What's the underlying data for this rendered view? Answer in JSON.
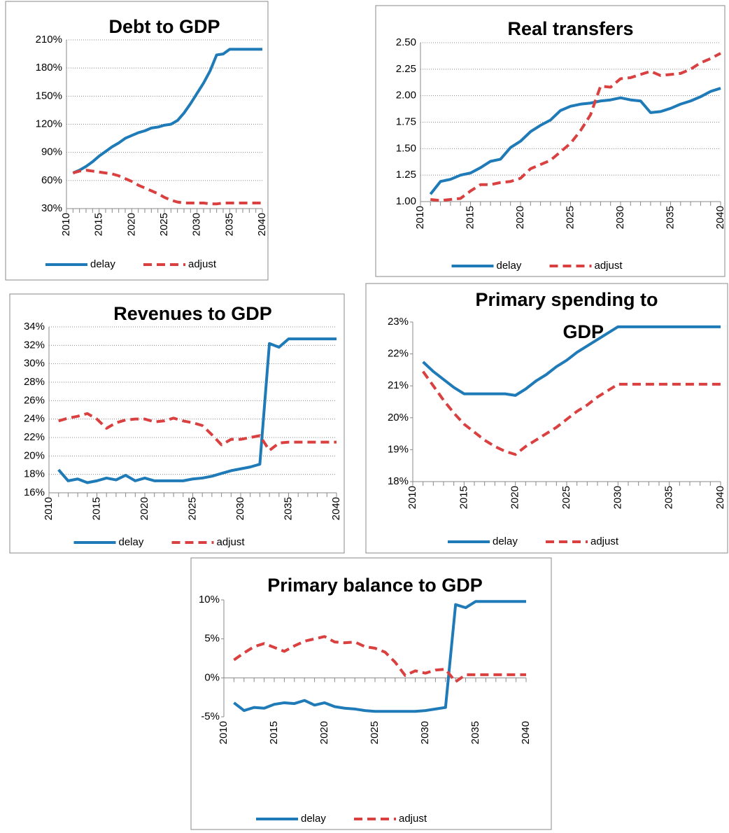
{
  "chart_data": [
    {
      "type": "line",
      "title": "Debt to GDP",
      "x": [
        2011,
        2012,
        2013,
        2014,
        2015,
        2016,
        2017,
        2018,
        2019,
        2020,
        2021,
        2022,
        2023,
        2024,
        2025,
        2026,
        2027,
        2028,
        2029,
        2030,
        2031,
        2032,
        2033,
        2034,
        2035,
        2036,
        2037,
        2038,
        2039,
        2040
      ],
      "xlim": [
        2010,
        2040
      ],
      "xticks": [
        2010,
        2015,
        2020,
        2025,
        2030,
        2035,
        2040
      ],
      "ylim": [
        30,
        210
      ],
      "yticks": [
        {
          "value": 30,
          "label": "30%"
        },
        {
          "value": 60,
          "label": "60%"
        },
        {
          "value": 90,
          "label": "90%"
        },
        {
          "value": 120,
          "label": "120%"
        },
        {
          "value": 150,
          "label": "150%"
        },
        {
          "value": 180,
          "label": "180%"
        },
        {
          "value": 210,
          "label": "210%"
        }
      ],
      "grid": true,
      "series": [
        {
          "name": "delay",
          "color": "#1f7ab8",
          "dash": false,
          "values": [
            68,
            71,
            75,
            80,
            86,
            91,
            96,
            100,
            105,
            108,
            111,
            113,
            116,
            117,
            119,
            120,
            124,
            132,
            142,
            153,
            164,
            177,
            194,
            195,
            200,
            200,
            200,
            200,
            200,
            200
          ]
        },
        {
          "name": "adjust",
          "color": "#d9403f",
          "dash": true,
          "values": [
            68,
            70,
            71,
            70,
            69,
            68,
            67,
            65,
            62,
            59,
            55,
            52,
            49,
            46,
            42,
            39,
            37,
            36,
            36,
            36,
            36,
            35,
            35,
            36,
            36,
            36,
            36,
            36,
            36,
            36
          ]
        }
      ]
    },
    {
      "type": "line",
      "title": "Real transfers",
      "x": [
        2011,
        2012,
        2013,
        2014,
        2015,
        2016,
        2017,
        2018,
        2019,
        2020,
        2021,
        2022,
        2023,
        2024,
        2025,
        2026,
        2027,
        2028,
        2029,
        2030,
        2031,
        2032,
        2033,
        2034,
        2035,
        2036,
        2037,
        2038,
        2039,
        2040
      ],
      "xlim": [
        2010,
        2040
      ],
      "xticks": [
        2010,
        2015,
        2020,
        2025,
        2030,
        2035,
        2040
      ],
      "ylim": [
        1,
        2.5
      ],
      "yticks": [
        {
          "value": 1,
          "label": "1.00"
        },
        {
          "value": 1.25,
          "label": "1.25"
        },
        {
          "value": 1.5,
          "label": "1.50"
        },
        {
          "value": 1.75,
          "label": "1.75"
        },
        {
          "value": 2,
          "label": "2.00"
        },
        {
          "value": 2.25,
          "label": "2.25"
        },
        {
          "value": 2.5,
          "label": "2.50"
        }
      ],
      "grid": true,
      "series": [
        {
          "name": "delay",
          "color": "#1f7ab8",
          "dash": false,
          "values": [
            1.07,
            1.19,
            1.21,
            1.25,
            1.27,
            1.32,
            1.38,
            1.4,
            1.51,
            1.57,
            1.66,
            1.72,
            1.77,
            1.86,
            1.9,
            1.92,
            1.93,
            1.95,
            1.96,
            1.98,
            1.96,
            1.95,
            1.84,
            1.85,
            1.88,
            1.92,
            1.95,
            1.99,
            2.04,
            2.07
          ]
        },
        {
          "name": "adjust",
          "color": "#d9403f",
          "dash": true,
          "values": [
            1.02,
            1.01,
            1.02,
            1.03,
            1.1,
            1.16,
            1.16,
            1.18,
            1.19,
            1.22,
            1.31,
            1.35,
            1.39,
            1.47,
            1.55,
            1.67,
            1.82,
            2.09,
            2.08,
            2.16,
            2.17,
            2.2,
            2.23,
            2.19,
            2.2,
            2.21,
            2.25,
            2.31,
            2.35,
            2.4
          ]
        }
      ]
    },
    {
      "type": "line",
      "title": "Revenues to GDP",
      "x": [
        2011,
        2012,
        2013,
        2014,
        2015,
        2016,
        2017,
        2018,
        2019,
        2020,
        2021,
        2022,
        2023,
        2024,
        2025,
        2026,
        2027,
        2028,
        2029,
        2030,
        2031,
        2032,
        2033,
        2034,
        2035,
        2036,
        2037,
        2038,
        2039,
        2040
      ],
      "xlim": [
        2010,
        2040
      ],
      "xticks": [
        2010,
        2015,
        2020,
        2025,
        2030,
        2035,
        2040
      ],
      "ylim": [
        16,
        34
      ],
      "yticks": [
        {
          "value": 16,
          "label": "16%"
        },
        {
          "value": 18,
          "label": "18%"
        },
        {
          "value": 20,
          "label": "20%"
        },
        {
          "value": 22,
          "label": "22%"
        },
        {
          "value": 24,
          "label": "24%"
        },
        {
          "value": 26,
          "label": "26%"
        },
        {
          "value": 28,
          "label": "28%"
        },
        {
          "value": 30,
          "label": "30%"
        },
        {
          "value": 32,
          "label": "32%"
        },
        {
          "value": 34,
          "label": "34%"
        }
      ],
      "grid": true,
      "series": [
        {
          "name": "delay",
          "color": "#1f7ab8",
          "dash": false,
          "values": [
            18.5,
            17.3,
            17.5,
            17.1,
            17.3,
            17.6,
            17.4,
            17.9,
            17.3,
            17.6,
            17.3,
            17.3,
            17.3,
            17.3,
            17.5,
            17.6,
            17.8,
            18.1,
            18.4,
            18.6,
            18.8,
            19.1,
            32.2,
            31.8,
            32.7,
            32.7,
            32.7,
            32.7,
            32.7,
            32.7
          ]
        },
        {
          "name": "adjust",
          "color": "#d9403f",
          "dash": true,
          "values": [
            23.8,
            24.1,
            24.3,
            24.6,
            24.0,
            23.0,
            23.6,
            23.9,
            24.0,
            24.0,
            23.7,
            23.8,
            24.1,
            23.8,
            23.6,
            23.3,
            22.3,
            21.2,
            21.8,
            21.8,
            22.0,
            22.2,
            20.6,
            21.4,
            21.5,
            21.5,
            21.5,
            21.5,
            21.5,
            21.5
          ]
        }
      ]
    },
    {
      "type": "line",
      "title": "Primary spending to GDP",
      "x": [
        2011,
        2012,
        2013,
        2014,
        2015,
        2016,
        2017,
        2018,
        2019,
        2020,
        2021,
        2022,
        2023,
        2024,
        2025,
        2026,
        2027,
        2028,
        2029,
        2030,
        2031,
        2032,
        2033,
        2034,
        2035,
        2036,
        2037,
        2038,
        2039,
        2040
      ],
      "xlim": [
        2010,
        2040
      ],
      "xticks": [
        2010,
        2015,
        2020,
        2025,
        2030,
        2035,
        2040
      ],
      "ylim": [
        18,
        23
      ],
      "yticks": [
        {
          "value": 18,
          "label": "18%"
        },
        {
          "value": 19,
          "label": "19%"
        },
        {
          "value": 20,
          "label": "20%"
        },
        {
          "value": 21,
          "label": "21%"
        },
        {
          "value": 22,
          "label": "22%"
        },
        {
          "value": 23,
          "label": "23%"
        }
      ],
      "grid": false,
      "series": [
        {
          "name": "delay",
          "color": "#1f7ab8",
          "dash": false,
          "values": [
            21.75,
            21.45,
            21.2,
            20.95,
            20.75,
            20.75,
            20.75,
            20.75,
            20.75,
            20.7,
            20.9,
            21.15,
            21.35,
            21.6,
            21.8,
            22.05,
            22.25,
            22.45,
            22.65,
            22.85,
            22.85,
            22.85,
            22.85,
            22.85,
            22.85,
            22.85,
            22.85,
            22.85,
            22.85,
            22.85
          ]
        },
        {
          "name": "adjust",
          "color": "#d9403f",
          "dash": true,
          "values": [
            21.45,
            21.0,
            20.55,
            20.15,
            19.8,
            19.55,
            19.3,
            19.1,
            18.95,
            18.85,
            19.1,
            19.3,
            19.5,
            19.7,
            19.95,
            20.2,
            20.4,
            20.65,
            20.85,
            21.05,
            21.05,
            21.05,
            21.05,
            21.05,
            21.05,
            21.05,
            21.05,
            21.05,
            21.05,
            21.05
          ]
        }
      ]
    },
    {
      "type": "line",
      "title": "Primary balance to GDP",
      "x": [
        2011,
        2012,
        2013,
        2014,
        2015,
        2016,
        2017,
        2018,
        2019,
        2020,
        2021,
        2022,
        2023,
        2024,
        2025,
        2026,
        2027,
        2028,
        2029,
        2030,
        2031,
        2032,
        2033,
        2034,
        2035,
        2036,
        2037,
        2038,
        2039,
        2040
      ],
      "xlim": [
        2010,
        2040
      ],
      "xticks": [
        2010,
        2015,
        2020,
        2025,
        2030,
        2035,
        2040
      ],
      "ylim": [
        -5,
        10
      ],
      "yticks": [
        {
          "value": -5,
          "label": "-5%"
        },
        {
          "value": 0,
          "label": "0%"
        },
        {
          "value": 5,
          "label": "5%"
        },
        {
          "value": 10,
          "label": "10%"
        }
      ],
      "grid": false,
      "series": [
        {
          "name": "delay",
          "color": "#1f7ab8",
          "dash": false,
          "values": [
            -3.2,
            -4.2,
            -3.8,
            -3.9,
            -3.4,
            -3.2,
            -3.3,
            -2.9,
            -3.5,
            -3.2,
            -3.7,
            -3.9,
            -4.0,
            -4.2,
            -4.3,
            -4.3,
            -4.3,
            -4.3,
            -4.3,
            -4.2,
            -4.0,
            -3.8,
            9.4,
            9.0,
            9.8,
            9.8,
            9.8,
            9.8,
            9.8,
            9.8
          ]
        },
        {
          "name": "adjust",
          "color": "#d9403f",
          "dash": true,
          "values": [
            2.3,
            3.2,
            4.0,
            4.4,
            3.9,
            3.4,
            4.1,
            4.7,
            5.0,
            5.3,
            4.6,
            4.5,
            4.6,
            4.0,
            3.8,
            3.3,
            2.0,
            0.3,
            0.9,
            0.6,
            1.0,
            1.1,
            -0.5,
            0.4,
            0.4,
            0.4,
            0.4,
            0.4,
            0.4,
            0.4
          ]
        }
      ]
    }
  ]
}
